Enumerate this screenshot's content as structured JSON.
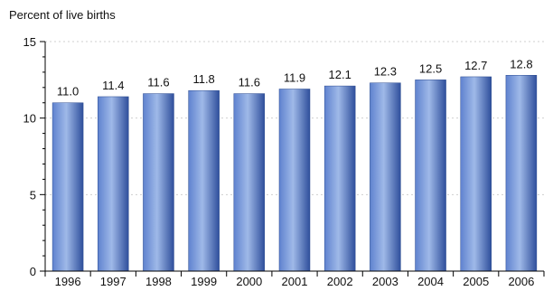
{
  "chart_data": {
    "type": "bar",
    "title": "",
    "xlabel": "",
    "ylabel": "Percent of live births",
    "categories": [
      "1996",
      "1997",
      "1998",
      "1999",
      "2000",
      "2001",
      "2002",
      "2003",
      "2004",
      "2005",
      "2006"
    ],
    "values": [
      11.0,
      11.4,
      11.6,
      11.8,
      11.6,
      11.9,
      12.1,
      12.3,
      12.5,
      12.7,
      12.8
    ],
    "value_labels": [
      "11.0",
      "11.4",
      "11.6",
      "11.8",
      "11.6",
      "11.9",
      "12.1",
      "12.3",
      "12.5",
      "12.7",
      "12.8"
    ],
    "ylim": [
      0,
      15
    ],
    "yticks": [
      0,
      5,
      10,
      15
    ],
    "grid": true,
    "legend": "none",
    "bar_color_light": "#9fb9e8",
    "bar_color_mid": "#5f82cf",
    "bar_color_dark": "#2f4f9c"
  }
}
